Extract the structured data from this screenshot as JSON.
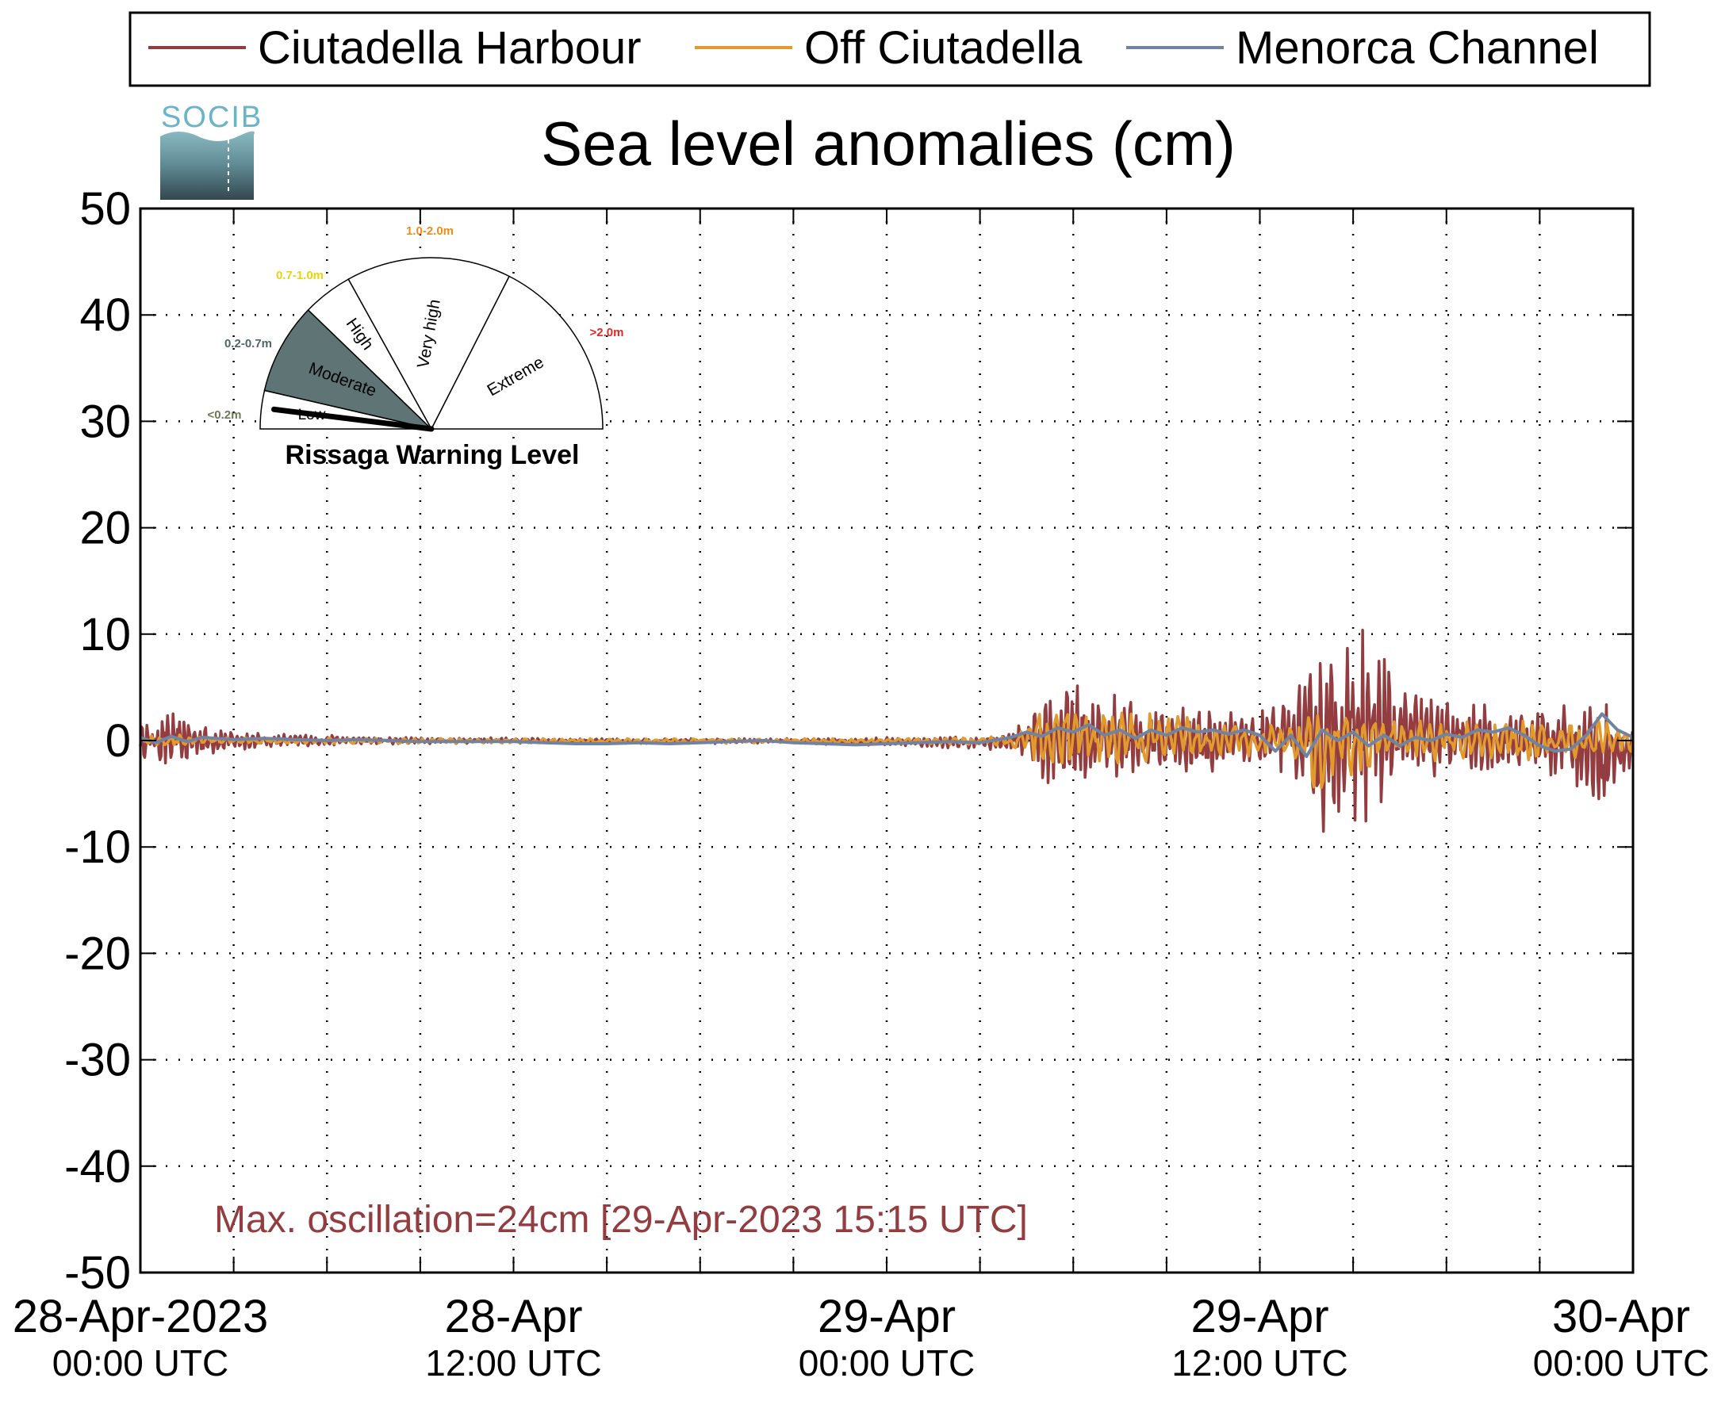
{
  "chart_data": {
    "type": "line",
    "title": "Sea level anomalies (cm)",
    "ylim": [
      -50,
      50
    ],
    "yticks": [
      50,
      40,
      30,
      20,
      10,
      0,
      -10,
      -20,
      -30,
      -40,
      -50
    ],
    "ytick_labels": [
      "50",
      "40",
      "30",
      "20",
      "10",
      "0",
      "-10",
      "-20",
      "-30",
      "-40",
      "-50"
    ],
    "x_range_hours": [
      0,
      48
    ],
    "xtick_hours": [
      0,
      3,
      6,
      9,
      12,
      15,
      18,
      21,
      24,
      27,
      30,
      33,
      36,
      39,
      42,
      45,
      48
    ],
    "xtick_labels": [
      {
        "hour": 0,
        "line1": "28-Apr-2023",
        "line2": "00:00 UTC"
      },
      {
        "hour": 12,
        "line1": "28-Apr",
        "line2": "12:00 UTC"
      },
      {
        "hour": 24,
        "line1": "29-Apr",
        "line2": "00:00 UTC"
      },
      {
        "hour": 36,
        "line1": "29-Apr",
        "line2": "12:00 UTC"
      },
      {
        "hour": 48,
        "line1": "30-Apr",
        "line2": "00:00 UTC"
      }
    ],
    "grid": true,
    "legend_position": "top",
    "series": [
      {
        "name": "Ciutadella Harbour",
        "color": "#943d41",
        "envelope": {
          "hours": [
            0,
            1,
            2,
            3,
            4,
            6,
            9,
            12,
            15,
            18,
            21,
            24,
            27,
            28,
            29,
            30,
            31,
            33,
            35,
            36,
            37,
            38,
            38.5,
            39,
            39.5,
            40,
            40.5,
            41,
            42,
            43,
            44,
            45,
            46,
            47,
            48
          ],
          "max": [
            1.5,
            3.0,
            1.5,
            1.0,
            0.8,
            0.5,
            0.3,
            0.3,
            0.2,
            0.2,
            0.2,
            0.3,
            0.4,
            0.8,
            5.0,
            5.5,
            4.5,
            3.5,
            3.0,
            3.0,
            4.0,
            9.0,
            8.0,
            12.0,
            13.5,
            9.0,
            6.0,
            5.0,
            4.0,
            3.5,
            3.0,
            3.5,
            4.0,
            4.5,
            1.5
          ],
          "min": [
            -1.5,
            -3.0,
            -1.5,
            -1.0,
            -0.8,
            -0.5,
            -0.3,
            -0.3,
            -0.3,
            -0.3,
            -0.3,
            -0.5,
            -0.8,
            -1.0,
            -4.0,
            -4.5,
            -4.0,
            -3.5,
            -3.0,
            -3.0,
            -3.0,
            -9.5,
            -7.0,
            -11.0,
            -11.5,
            -8.0,
            -5.0,
            -4.0,
            -3.5,
            -3.5,
            -3.0,
            -3.5,
            -4.0,
            -7.0,
            -3.0
          ]
        },
        "period_hours": 0.17
      },
      {
        "name": "Off Ciutadella",
        "color": "#e39a2d",
        "envelope": {
          "hours": [
            0,
            1,
            2,
            4,
            12,
            24,
            27,
            28,
            29,
            30,
            33,
            36,
            37,
            38,
            38.5,
            39,
            39.5,
            40,
            41,
            42,
            44,
            46,
            47,
            48
          ],
          "max": [
            0.5,
            0.6,
            0.4,
            0.3,
            0.2,
            0.2,
            0.3,
            0.5,
            3.5,
            3.0,
            2.5,
            1.5,
            1.5,
            3.0,
            2.5,
            3.0,
            3.0,
            2.5,
            2.0,
            2.0,
            2.0,
            2.0,
            2.5,
            1.0
          ],
          "min": [
            -0.5,
            -0.6,
            -0.4,
            -0.3,
            -0.3,
            -0.3,
            -0.4,
            -0.6,
            -2.5,
            -2.5,
            -2.0,
            -1.5,
            -1.5,
            -6.0,
            -3.0,
            -3.5,
            -3.5,
            -2.5,
            -2.0,
            -2.0,
            -2.0,
            -2.0,
            -2.0,
            -1.0
          ]
        },
        "period_hours": 0.3
      },
      {
        "name": "Menorca Channel",
        "color": "#7183a3",
        "points": [
          [
            0,
            0.3
          ],
          [
            0.5,
            -0.2
          ],
          [
            1,
            0.4
          ],
          [
            1.5,
            -0.1
          ],
          [
            2,
            0.3
          ],
          [
            3,
            0.1
          ],
          [
            4,
            0.2
          ],
          [
            5,
            0.1
          ],
          [
            6,
            0.0
          ],
          [
            7,
            0.1
          ],
          [
            8,
            0.0
          ],
          [
            9,
            -0.1
          ],
          [
            10,
            -0.1
          ],
          [
            11,
            -0.1
          ],
          [
            12,
            -0.1
          ],
          [
            13,
            -0.2
          ],
          [
            14,
            -0.3
          ],
          [
            15,
            -0.3
          ],
          [
            16,
            -0.2
          ],
          [
            17,
            -0.3
          ],
          [
            18,
            -0.2
          ],
          [
            19,
            -0.1
          ],
          [
            20,
            0.0
          ],
          [
            21,
            -0.2
          ],
          [
            22,
            -0.3
          ],
          [
            23,
            -0.4
          ],
          [
            24,
            -0.3
          ],
          [
            25,
            -0.2
          ],
          [
            26,
            -0.1
          ],
          [
            27,
            -0.2
          ],
          [
            28,
            0.3
          ],
          [
            28.5,
            0.8
          ],
          [
            29,
            0.4
          ],
          [
            29.5,
            1.2
          ],
          [
            30,
            0.8
          ],
          [
            30.5,
            1.5
          ],
          [
            31,
            0.5
          ],
          [
            31.5,
            1.0
          ],
          [
            32,
            0.2
          ],
          [
            32.5,
            1.0
          ],
          [
            33,
            0.5
          ],
          [
            33.5,
            1.2
          ],
          [
            34,
            0.8
          ],
          [
            34.5,
            1.0
          ],
          [
            35,
            0.6
          ],
          [
            35.5,
            1.0
          ],
          [
            36,
            0.5
          ],
          [
            36.5,
            -1.0
          ],
          [
            37,
            0.5
          ],
          [
            37.5,
            -1.5
          ],
          [
            38,
            1.0
          ],
          [
            38.5,
            0.0
          ],
          [
            39,
            0.8
          ],
          [
            39.5,
            -0.5
          ],
          [
            40,
            0.5
          ],
          [
            40.5,
            -0.5
          ],
          [
            41,
            0.3
          ],
          [
            41.5,
            0.0
          ],
          [
            42,
            0.6
          ],
          [
            42.5,
            0.3
          ],
          [
            43,
            1.0
          ],
          [
            43.5,
            0.8
          ],
          [
            44,
            1.2
          ],
          [
            44.5,
            0.5
          ],
          [
            45,
            -0.5
          ],
          [
            45.5,
            -1.0
          ],
          [
            46,
            -0.8
          ],
          [
            46.5,
            0.5
          ],
          [
            47,
            2.5
          ],
          [
            47.5,
            1.0
          ],
          [
            48,
            0.3
          ]
        ]
      }
    ],
    "annotation": "Max. oscillation=24cm [29-Apr-2023 15:15 UTC]",
    "annotation_color": "#943d41"
  },
  "logo": {
    "text": "SOCIB",
    "color": "#6ab4c9"
  },
  "gauge": {
    "title": "Rissaga Warning Level",
    "indicator_value_m": 0.3,
    "sectors": [
      {
        "label": "Low",
        "range": "<0.2m",
        "range_color": "#6b7a54",
        "fill": "#ffffff"
      },
      {
        "label": "Moderate",
        "range": "0.2-0.7m",
        "range_color": "#4f6669",
        "fill": "#5e7475"
      },
      {
        "label": "High",
        "range": "0.7-1.0m",
        "range_color": "#ead40c",
        "fill": "#ffffff"
      },
      {
        "label": "Very high",
        "range": "1.0-2.0m",
        "range_color": "#f18a1a",
        "fill": "#ffffff"
      },
      {
        "label": "Extreme",
        "range": ">2.0m",
        "range_color": "#e32727",
        "fill": "#ffffff"
      }
    ]
  }
}
